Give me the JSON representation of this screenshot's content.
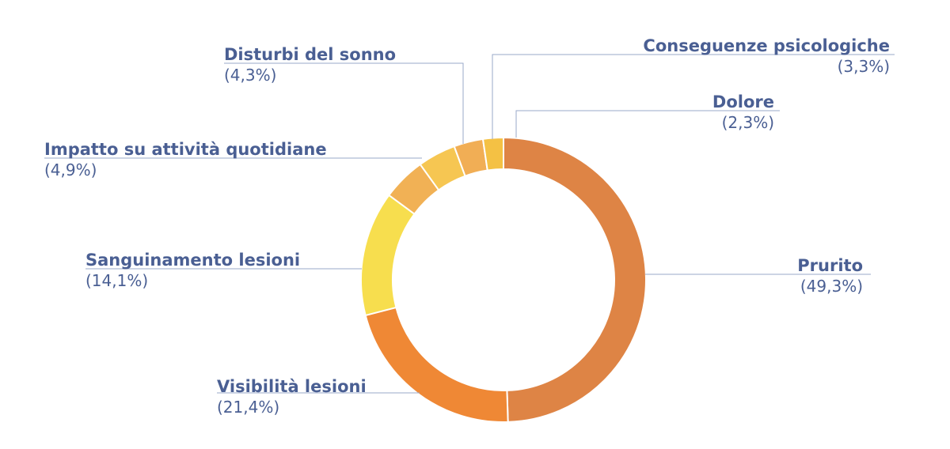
{
  "colors": {
    "label_text": "#4a5f93",
    "leader_line": "#9aa8c8",
    "separator": "#ffffff"
  },
  "chart_data": {
    "type": "pie",
    "variant": "donut",
    "title": "",
    "slices": [
      {
        "label": "Prurito",
        "value_text": "(49,3%)",
        "value": 49.3,
        "color": "#de8445"
      },
      {
        "label": "Visibilità lesioni",
        "value_text": "(21,4%)",
        "value": 21.4,
        "color": "#ef8835"
      },
      {
        "label": "Sanguinamento lesioni",
        "value_text": "(14,1%)",
        "value": 14.1,
        "color": "#f7de4e"
      },
      {
        "label": "Impatto su attività quotidiane",
        "value_text": "(4,9%)",
        "value": 4.9,
        "color": "#f1b155"
      },
      {
        "label": "Disturbi del sonno",
        "value_text": "(4,3%)",
        "value": 4.3,
        "color": "#f6c652"
      },
      {
        "label": "Conseguenze psicologiche",
        "value_text": "(3,3%)",
        "value": 3.3,
        "color": "#f1ae55"
      },
      {
        "label": "Dolore",
        "value_text": "(2,3%)",
        "value": 2.3,
        "color": "#f4c144"
      }
    ]
  }
}
